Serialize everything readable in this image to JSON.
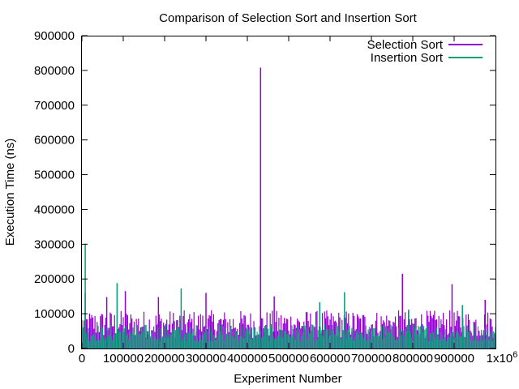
{
  "chart_data": {
    "type": "line",
    "title": "Comparison of Selection Sort and Insertion Sort",
    "xlabel": "Experiment Number",
    "ylabel": "Execution Time (ns)",
    "xlim": [
      0,
      1000000
    ],
    "ylim": [
      0,
      900000
    ],
    "x_ticks": [
      0,
      100000,
      200000,
      300000,
      400000,
      500000,
      600000,
      700000,
      800000,
      900000
    ],
    "x_tick_labels": [
      "0",
      "100000",
      "200000",
      "300000",
      "400000",
      "500000",
      "600000",
      "700000",
      "800000",
      "900000"
    ],
    "x_max_tick_label": "1x10",
    "x_max_tick_exponent": "6",
    "y_ticks": [
      0,
      100000,
      200000,
      300000,
      400000,
      500000,
      600000,
      700000,
      800000,
      900000
    ],
    "y_tick_labels": [
      "0",
      "100000",
      "200000",
      "300000",
      "400000",
      "500000",
      "600000",
      "700000",
      "800000",
      "900000"
    ],
    "grid": false,
    "legend_position": "top-right",
    "series": [
      {
        "name": "Selection Sort",
        "color": "#9400d3",
        "baseline_range": [
          30000,
          110000
        ],
        "spikes": [
          {
            "x": 8000,
            "y": 160000
          },
          {
            "x": 60000,
            "y": 148000
          },
          {
            "x": 105000,
            "y": 165000
          },
          {
            "x": 185000,
            "y": 148000
          },
          {
            "x": 300000,
            "y": 160000
          },
          {
            "x": 432000,
            "y": 808000
          },
          {
            "x": 465000,
            "y": 150000
          },
          {
            "x": 775000,
            "y": 215000
          },
          {
            "x": 895000,
            "y": 185000
          },
          {
            "x": 975000,
            "y": 140000
          }
        ]
      },
      {
        "name": "Insertion Sort",
        "color": "#009e73",
        "baseline_range": [
          20000,
          70000
        ],
        "spikes": [
          {
            "x": 8000,
            "y": 300000
          },
          {
            "x": 85000,
            "y": 188000
          },
          {
            "x": 240000,
            "y": 173000
          },
          {
            "x": 635000,
            "y": 162000
          },
          {
            "x": 575000,
            "y": 133000
          },
          {
            "x": 790000,
            "y": 112000
          },
          {
            "x": 920000,
            "y": 125000
          }
        ]
      }
    ]
  }
}
